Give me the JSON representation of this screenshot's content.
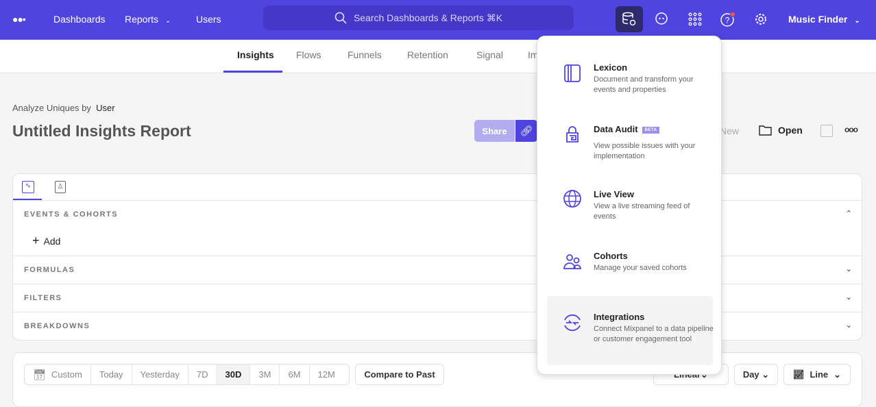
{
  "topbar": {
    "nav": [
      "Dashboards",
      "Reports",
      "Users"
    ],
    "search_placeholder": "Search Dashboards & Reports ⌘K",
    "project": "Music Finder",
    "brand_color": "#4f44e0",
    "icons": [
      "logo-dots-icon",
      "data-management-icon",
      "chat-icon",
      "apps-grid-icon",
      "help-icon",
      "settings-icon"
    ]
  },
  "tabs": [
    "Insights",
    "Flows",
    "Funnels",
    "Retention",
    "Signal",
    "Impact"
  ],
  "report": {
    "analyze_label": "Analyze Uniques by",
    "analyze_value": "User",
    "title": "Untitled Insights Report",
    "share": "Share",
    "new": "New",
    "open": "Open"
  },
  "query": {
    "sections": [
      "EVENTS & COHORTS",
      "FORMULAS",
      "FILTERS",
      "BREAKDOWNS"
    ],
    "add": "Add"
  },
  "controls": {
    "ranges": [
      "Custom",
      "Today",
      "Yesterday",
      "7D",
      "30D",
      "3M",
      "6M",
      "12M"
    ],
    "selected_range": "30D",
    "compare": "Compare to Past",
    "scale": "Linear",
    "interval": "Day",
    "chart_type": "Line"
  },
  "menu": [
    {
      "title": "Lexicon",
      "desc": "Document and transform your events and properties",
      "icon": "book-icon"
    },
    {
      "title": "Data Audit",
      "badge": "BETA",
      "desc": "View possible issues with your implementation",
      "icon": "audit-lock-icon"
    },
    {
      "title": "Live View",
      "desc": "View a live streaming feed of events",
      "icon": "globe-icon"
    },
    {
      "title": "Cohorts",
      "desc": "Manage your saved cohorts",
      "icon": "users-icon"
    },
    {
      "title": "Integrations",
      "desc": "Connect Mixpanel to a data pipeline or customer engagement tool",
      "icon": "integration-arrows-icon",
      "highlighted": true
    }
  ]
}
